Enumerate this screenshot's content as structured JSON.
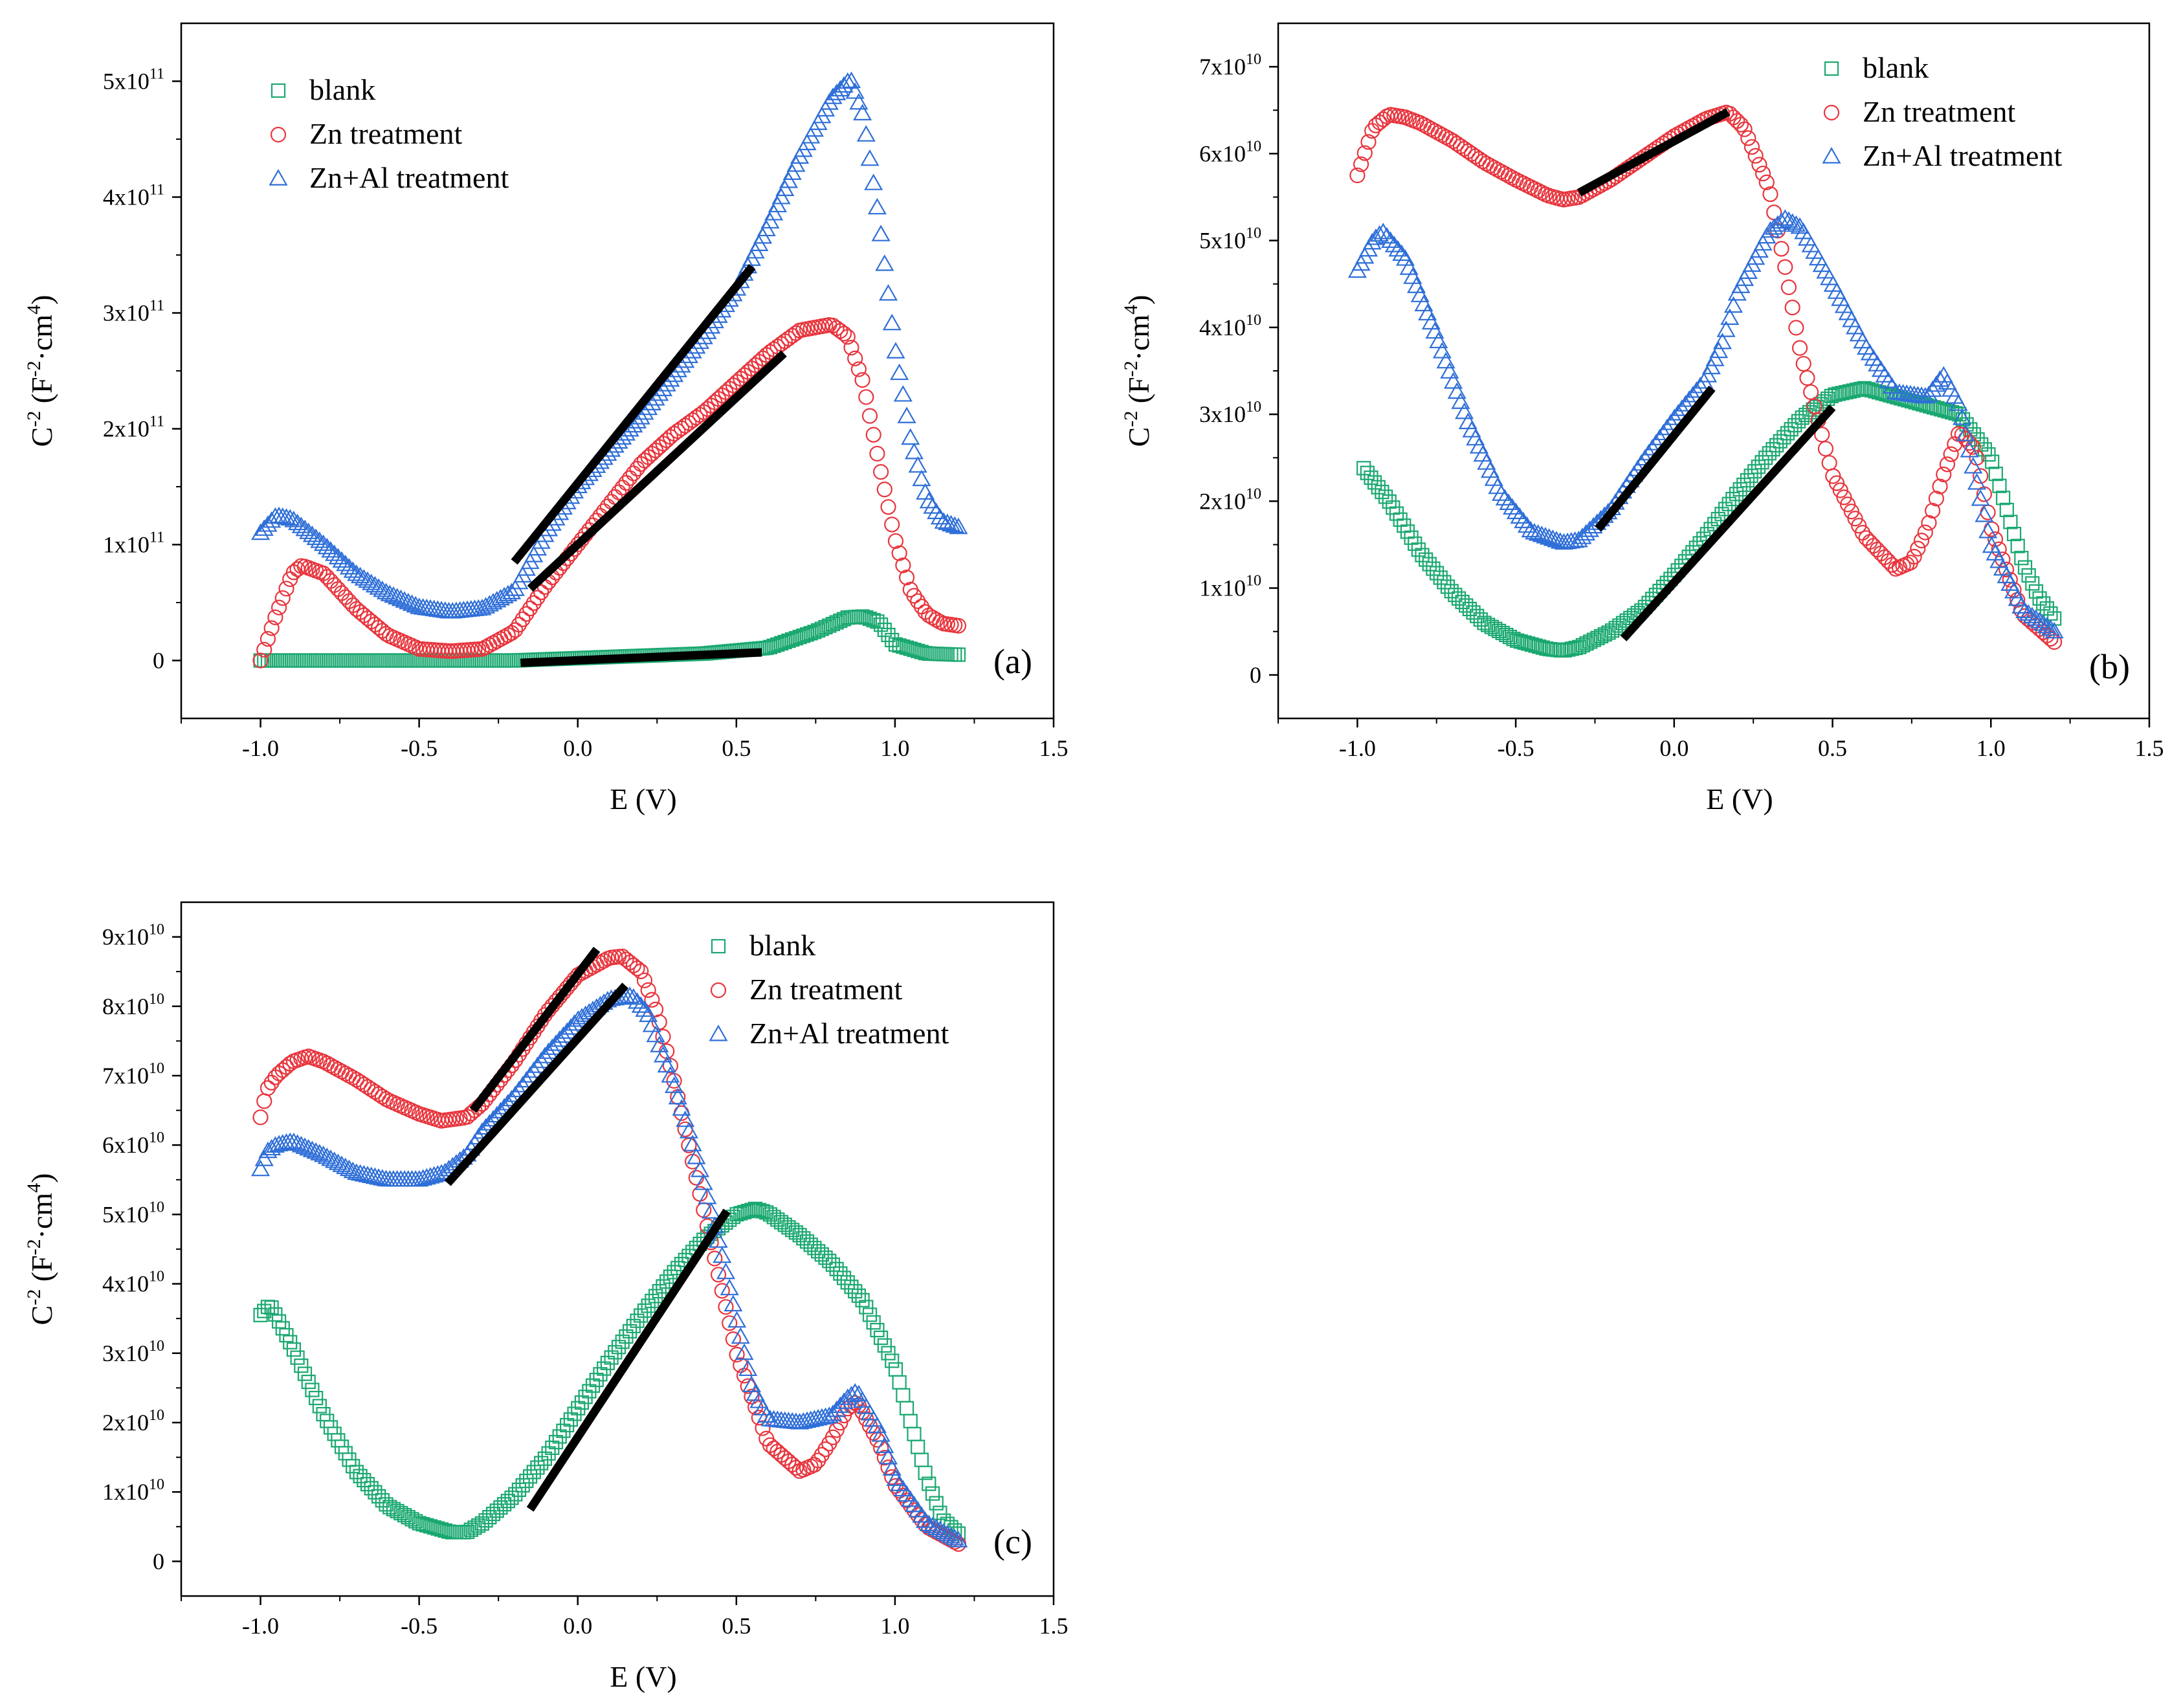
{
  "colors": {
    "blank": "#1aa870",
    "zn": "#e8353d",
    "znal": "#2f6fd8",
    "fit": "#000000",
    "axis": "#000000"
  },
  "chart_data": [
    {
      "panel": "(a)",
      "type": "scatter",
      "xlabel": "E (V)",
      "ylabel": "C-2 (F-2·cm4)",
      "ylabel_base": "C",
      "ylabel_exp1": "-2",
      "ylabel_mid": " (F",
      "ylabel_exp2": "-2",
      "ylabel_mid2": "·cm",
      "ylabel_exp3": "4",
      "ylabel_end": ")",
      "xlim": [
        -1.25,
        1.5
      ],
      "ylim": [
        -50000000000.0,
        550000000000.0
      ],
      "xticks": [
        -1.0,
        -0.5,
        0.0,
        0.5,
        1.0,
        1.5
      ],
      "xtick_labels": [
        "-1.0",
        "-0.5",
        "0.0",
        "0.5",
        "1.0",
        "1.5"
      ],
      "yticks": [
        0,
        100000000000.0,
        200000000000.0,
        300000000000.0,
        400000000000.0,
        500000000000.0
      ],
      "ytick_labels": [
        {
          "base": "0",
          "exp": ""
        },
        {
          "base": "1x10",
          "exp": "11"
        },
        {
          "base": "2x10",
          "exp": "11"
        },
        {
          "base": "3x10",
          "exp": "11"
        },
        {
          "base": "4x10",
          "exp": "11"
        },
        {
          "base": "5x10",
          "exp": "11"
        }
      ],
      "legend": {
        "position": "top-left",
        "entries": [
          "blank",
          "Zn treatment",
          "Zn+Al treatment"
        ]
      },
      "series": [
        {
          "name": "blank",
          "marker": "square",
          "x": [
            -1.0,
            -0.8,
            -0.6,
            -0.4,
            -0.2,
            0.0,
            0.2,
            0.4,
            0.6,
            0.75,
            0.85,
            0.9,
            0.95,
            1.0,
            1.1,
            1.2
          ],
          "y": [
            0,
            0,
            0,
            0,
            0,
            2000000000.0,
            4000000000.0,
            6000000000.0,
            11000000000.0,
            25000000000.0,
            37000000000.0,
            38000000000.0,
            33000000000.0,
            14000000000.0,
            6000000000.0,
            5000000000.0
          ]
        },
        {
          "name": "Zn treatment",
          "marker": "circle",
          "x": [
            -1.0,
            -0.95,
            -0.9,
            -0.87,
            -0.8,
            -0.7,
            -0.6,
            -0.5,
            -0.4,
            -0.3,
            -0.2,
            -0.1,
            0.0,
            0.1,
            0.2,
            0.3,
            0.4,
            0.5,
            0.6,
            0.7,
            0.8,
            0.85,
            0.9,
            0.95,
            1.0,
            1.05,
            1.1,
            1.15,
            1.2
          ],
          "y": [
            0,
            40000000000.0,
            75000000000.0,
            82000000000.0,
            75000000000.0,
            45000000000.0,
            22000000000.0,
            10000000000.0,
            8000000000.0,
            10000000000.0,
            25000000000.0,
            65000000000.0,
            100000000000.0,
            135000000000.0,
            170000000000.0,
            195000000000.0,
            215000000000.0,
            240000000000.0,
            265000000000.0,
            285000000000.0,
            290000000000.0,
            280000000000.0,
            240000000000.0,
            170000000000.0,
            105000000000.0,
            60000000000.0,
            40000000000.0,
            32000000000.0,
            30000000000.0
          ]
        },
        {
          "name": "Zn+Al treatment",
          "marker": "triangle",
          "x": [
            -1.0,
            -0.95,
            -0.9,
            -0.8,
            -0.7,
            -0.6,
            -0.5,
            -0.4,
            -0.3,
            -0.2,
            -0.1,
            0.0,
            0.1,
            0.2,
            0.3,
            0.4,
            0.5,
            0.6,
            0.7,
            0.8,
            0.86,
            0.9,
            0.95,
            1.0,
            1.05,
            1.1,
            1.15,
            1.2
          ],
          "y": [
            110000000000.0,
            125000000000.0,
            122000000000.0,
            100000000000.0,
            75000000000.0,
            58000000000.0,
            46000000000.0,
            42000000000.0,
            45000000000.0,
            60000000000.0,
            110000000000.0,
            150000000000.0,
            180000000000.0,
            210000000000.0,
            245000000000.0,
            280000000000.0,
            320000000000.0,
            375000000000.0,
            435000000000.0,
            485000000000.0,
            502000000000.0,
            470000000000.0,
            380000000000.0,
            270000000000.0,
            190000000000.0,
            140000000000.0,
            120000000000.0,
            115000000000.0
          ]
        }
      ],
      "fit_lines": [
        {
          "x": [
            -0.2,
            0.55
          ],
          "y": [
            85000000000.0,
            340000000000.0
          ]
        },
        {
          "x": [
            -0.15,
            0.65
          ],
          "y": [
            62000000000.0,
            265000000000.0
          ]
        },
        {
          "x": [
            -0.18,
            0.58
          ],
          "y": [
            -2000000000.0,
            7000000000.0
          ]
        }
      ]
    },
    {
      "panel": "(b)",
      "type": "scatter",
      "xlabel": "E (V)",
      "ylabel": "C-2 (F-2·cm4)",
      "ylabel_base": "C",
      "ylabel_exp1": "-2",
      "ylabel_mid": " (F",
      "ylabel_exp2": "-2",
      "ylabel_mid2": "·cm",
      "ylabel_exp3": "4",
      "ylabel_end": ")",
      "xlim": [
        -1.25,
        1.5
      ],
      "ylim": [
        -5000000000.0,
        75000000000.0
      ],
      "xticks": [
        -1.0,
        -0.5,
        0.0,
        0.5,
        1.0,
        1.5
      ],
      "xtick_labels": [
        "-1.0",
        "-0.5",
        "0.0",
        "0.5",
        "1.0",
        "1.5"
      ],
      "yticks": [
        0,
        10000000000.0,
        20000000000.0,
        30000000000.0,
        40000000000.0,
        50000000000.0,
        60000000000.0,
        70000000000.0
      ],
      "ytick_labels": [
        {
          "base": "0",
          "exp": ""
        },
        {
          "base": "1x10",
          "exp": "10"
        },
        {
          "base": "2x10",
          "exp": "10"
        },
        {
          "base": "3x10",
          "exp": "10"
        },
        {
          "base": "4x10",
          "exp": "10"
        },
        {
          "base": "5x10",
          "exp": "10"
        },
        {
          "base": "6x10",
          "exp": "10"
        },
        {
          "base": "7x10",
          "exp": "10"
        }
      ],
      "legend": {
        "position": "top-right",
        "entries": [
          "blank",
          "Zn treatment",
          "Zn+Al treatment"
        ]
      },
      "series": [
        {
          "name": "blank",
          "marker": "square",
          "x": [
            -0.98,
            -0.9,
            -0.8,
            -0.7,
            -0.6,
            -0.5,
            -0.4,
            -0.35,
            -0.3,
            -0.2,
            -0.1,
            0.0,
            0.1,
            0.2,
            0.3,
            0.4,
            0.5,
            0.6,
            0.7,
            0.8,
            0.9,
            1.0,
            1.05,
            1.1,
            1.15,
            1.2
          ],
          "y": [
            23800000000.0,
            20000000000.0,
            14000000000.0,
            9500000000.0,
            6000000000.0,
            4000000000.0,
            3000000000.0,
            2800000000.0,
            3200000000.0,
            5000000000.0,
            7500000000.0,
            11500000000.0,
            16000000000.0,
            21000000000.0,
            25500000000.0,
            29500000000.0,
            32200000000.0,
            33000000000.0,
            32000000000.0,
            31000000000.0,
            30000000000.0,
            25000000000.0,
            19000000000.0,
            13000000000.0,
            9000000000.0,
            6500000000.0
          ]
        },
        {
          "name": "Zn treatment",
          "marker": "circle",
          "x": [
            -1.0,
            -0.95,
            -0.9,
            -0.85,
            -0.8,
            -0.7,
            -0.6,
            -0.5,
            -0.4,
            -0.35,
            -0.3,
            -0.2,
            -0.1,
            0.0,
            0.1,
            0.17,
            0.22,
            0.3,
            0.35,
            0.4,
            0.5,
            0.6,
            0.7,
            0.75,
            0.8,
            0.85,
            0.9,
            0.95,
            1.0,
            1.1,
            1.2
          ],
          "y": [
            57500000000.0,
            63000000000.0,
            64500000000.0,
            64200000000.0,
            63500000000.0,
            61500000000.0,
            59000000000.0,
            57000000000.0,
            55200000000.0,
            54700000000.0,
            55000000000.0,
            57000000000.0,
            59500000000.0,
            62000000000.0,
            64000000000.0,
            64800000000.0,
            63000000000.0,
            56000000000.0,
            47000000000.0,
            37000000000.0,
            23000000000.0,
            16000000000.0,
            12200000000.0,
            13000000000.0,
            17000000000.0,
            23000000000.0,
            28000000000.0,
            26000000000.0,
            17000000000.0,
            7000000000.0,
            3800000000.0
          ]
        },
        {
          "name": "Zn+Al treatment",
          "marker": "triangle",
          "x": [
            -1.0,
            -0.95,
            -0.92,
            -0.85,
            -0.75,
            -0.65,
            -0.55,
            -0.45,
            -0.35,
            -0.3,
            -0.2,
            -0.1,
            0.0,
            0.1,
            0.15,
            0.2,
            0.3,
            0.35,
            0.4,
            0.5,
            0.6,
            0.7,
            0.8,
            0.85,
            0.9,
            0.95,
            1.0,
            1.1,
            1.2
          ],
          "y": [
            46500000000.0,
            50000000000.0,
            51000000000.0,
            48000000000.0,
            39000000000.0,
            29000000000.0,
            21000000000.0,
            16500000000.0,
            15200000000.0,
            15500000000.0,
            19000000000.0,
            24500000000.0,
            29500000000.0,
            34000000000.0,
            38000000000.0,
            44000000000.0,
            51000000000.0,
            52500000000.0,
            51500000000.0,
            45000000000.0,
            38000000000.0,
            32500000000.0,
            32000000000.0,
            34500000000.0,
            31000000000.0,
            23000000000.0,
            15000000000.0,
            7500000000.0,
            5000000000.0
          ]
        }
      ],
      "fit_lines": [
        {
          "x": [
            -0.3,
            0.17
          ],
          "y": [
            55500000000.0,
            64800000000.0
          ]
        },
        {
          "x": [
            -0.24,
            0.12
          ],
          "y": [
            16800000000.0,
            33000000000.0
          ]
        },
        {
          "x": [
            -0.16,
            0.5
          ],
          "y": [
            4200000000.0,
            30800000000.0
          ]
        }
      ]
    },
    {
      "panel": "(c)",
      "type": "scatter",
      "xlabel": "E (V)",
      "ylabel": "C-2 (F-2·cm4)",
      "ylabel_base": "C",
      "ylabel_exp1": "-2",
      "ylabel_mid": " (F",
      "ylabel_exp2": "-2",
      "ylabel_mid2": "·cm",
      "ylabel_exp3": "4",
      "ylabel_end": ")",
      "xlim": [
        -1.25,
        1.5
      ],
      "ylim": [
        -5000000000.0,
        95000000000.0
      ],
      "xticks": [
        -1.0,
        -0.5,
        0.0,
        0.5,
        1.0,
        1.5
      ],
      "xtick_labels": [
        "-1.0",
        "-0.5",
        "0.0",
        "0.5",
        "1.0",
        "1.5"
      ],
      "yticks": [
        0,
        10000000000.0,
        20000000000.0,
        30000000000.0,
        40000000000.0,
        50000000000.0,
        60000000000.0,
        70000000000.0,
        80000000000.0,
        90000000000.0
      ],
      "ytick_labels": [
        {
          "base": "0",
          "exp": ""
        },
        {
          "base": "1x10",
          "exp": "10"
        },
        {
          "base": "2x10",
          "exp": "10"
        },
        {
          "base": "3x10",
          "exp": "10"
        },
        {
          "base": "4x10",
          "exp": "10"
        },
        {
          "base": "5x10",
          "exp": "10"
        },
        {
          "base": "6x10",
          "exp": "10"
        },
        {
          "base": "7x10",
          "exp": "10"
        },
        {
          "base": "8x10",
          "exp": "10"
        },
        {
          "base": "9x10",
          "exp": "10"
        }
      ],
      "legend": {
        "position": "top-right",
        "entries": [
          "blank",
          "Zn treatment",
          "Zn+Al treatment"
        ]
      },
      "series": [
        {
          "name": "blank",
          "marker": "square",
          "x": [
            -1.0,
            -0.97,
            -0.9,
            -0.8,
            -0.7,
            -0.6,
            -0.5,
            -0.4,
            -0.35,
            -0.3,
            -0.2,
            -0.1,
            0.0,
            0.1,
            0.2,
            0.3,
            0.4,
            0.5,
            0.56,
            0.6,
            0.7,
            0.8,
            0.9,
            1.0,
            1.05,
            1.1,
            1.15,
            1.2
          ],
          "y": [
            35500000000.0,
            37000000000.0,
            31000000000.0,
            21000000000.0,
            13000000000.0,
            8000000000.0,
            5500000000.0,
            4200000000.0,
            4200000000.0,
            5500000000.0,
            9500000000.0,
            15000000000.0,
            22000000000.0,
            29000000000.0,
            35500000000.0,
            41500000000.0,
            46500000000.0,
            50000000000.0,
            50800000000.0,
            50200000000.0,
            47000000000.0,
            43000000000.0,
            37500000000.0,
            28000000000.0,
            20000000000.0,
            12000000000.0,
            6000000000.0,
            4000000000.0
          ]
        },
        {
          "name": "Zn treatment",
          "marker": "circle",
          "x": [
            -1.0,
            -0.98,
            -0.95,
            -0.9,
            -0.85,
            -0.8,
            -0.7,
            -0.6,
            -0.5,
            -0.43,
            -0.35,
            -0.3,
            -0.2,
            -0.1,
            0.0,
            0.1,
            0.14,
            0.2,
            0.25,
            0.3,
            0.35,
            0.4,
            0.45,
            0.5,
            0.6,
            0.7,
            0.75,
            0.8,
            0.85,
            0.88,
            0.95,
            1.0,
            1.1,
            1.2
          ],
          "y": [
            64000000000.0,
            68000000000.0,
            70000000000.0,
            72000000000.0,
            72800000000.0,
            72000000000.0,
            69500000000.0,
            66500000000.0,
            64500000000.0,
            63500000000.0,
            64000000000.0,
            66000000000.0,
            72000000000.0,
            79000000000.0,
            84500000000.0,
            87000000000.0,
            87200000000.0,
            85000000000.0,
            79000000000.0,
            70000000000.0,
            60000000000.0,
            50000000000.0,
            40000000000.0,
            30000000000.0,
            17000000000.0,
            13000000000.0,
            14000000000.0,
            17500000000.0,
            22000000000.0,
            23000000000.0,
            17000000000.0,
            11000000000.0,
            5000000000.0,
            2500000000.0
          ]
        },
        {
          "name": "Zn+Al treatment",
          "marker": "triangle",
          "x": [
            -1.0,
            -0.98,
            -0.95,
            -0.9,
            -0.85,
            -0.8,
            -0.7,
            -0.6,
            -0.5,
            -0.42,
            -0.35,
            -0.3,
            -0.2,
            -0.1,
            0.0,
            0.1,
            0.17,
            0.22,
            0.3,
            0.35,
            0.4,
            0.45,
            0.5,
            0.55,
            0.6,
            0.7,
            0.8,
            0.85,
            0.88,
            0.95,
            1.0,
            1.1,
            1.2
          ],
          "y": [
            56500000000.0,
            59000000000.0,
            60000000000.0,
            60500000000.0,
            59500000000.0,
            58500000000.0,
            56000000000.0,
            55000000000.0,
            55000000000.0,
            56000000000.0,
            58500000000.0,
            62000000000.0,
            67000000000.0,
            73000000000.0,
            78000000000.0,
            81000000000.0,
            81500000000.0,
            79000000000.0,
            69000000000.0,
            62000000000.0,
            54000000000.0,
            45000000000.0,
            35000000000.0,
            25000000000.0,
            20500000000.0,
            20000000000.0,
            21000000000.0,
            23500000000.0,
            24500000000.0,
            19000000000.0,
            12000000000.0,
            5500000000.0,
            3000000000.0
          ]
        }
      ],
      "fit_lines": [
        {
          "x": [
            -0.33,
            0.06
          ],
          "y": [
            65000000000.0,
            88200000000.0
          ]
        },
        {
          "x": [
            -0.41,
            0.15
          ],
          "y": [
            54500000000.0,
            83000000000.0
          ]
        },
        {
          "x": [
            -0.15,
            0.47
          ],
          "y": [
            7500000000.0,
            50500000000.0
          ]
        }
      ]
    }
  ]
}
